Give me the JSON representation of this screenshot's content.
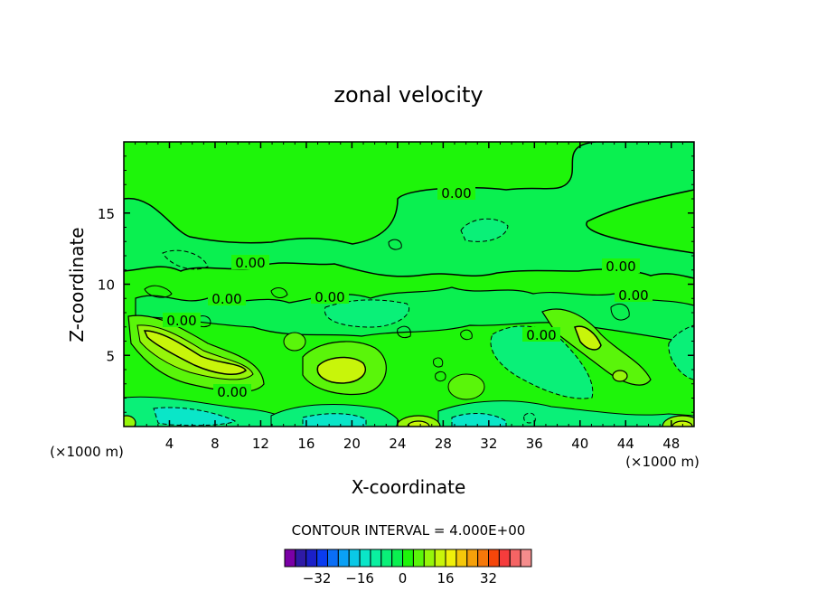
{
  "chart_data": {
    "type": "heatmap",
    "title": "zonal velocity",
    "xlabel": "X-coordinate",
    "ylabel": "Z-coordinate",
    "x_unit": "(×1000 m)",
    "z_unit": "(×1000 m)",
    "xlim": [
      0,
      50
    ],
    "ylim": [
      0,
      20
    ],
    "x_ticks": [
      4,
      8,
      12,
      16,
      20,
      24,
      28,
      32,
      36,
      40,
      44,
      48
    ],
    "y_ticks": [
      5,
      10,
      15
    ],
    "x_tick_labels": [
      "4",
      "8",
      "12",
      "16",
      "20",
      "24",
      "28",
      "32",
      "36",
      "40",
      "44",
      "48"
    ],
    "y_tick_labels": [
      "5",
      "10",
      "15"
    ],
    "contour_interval_text": "CONTOUR INTERVAL = 4.000E+00",
    "contour_label": "0.00",
    "colorbar": {
      "colors": [
        "#7a00a6",
        "#2f1aa6",
        "#1b20c8",
        "#0a3cf0",
        "#0a6ef5",
        "#0aa0f5",
        "#0ac8e6",
        "#0ae6c8",
        "#0af0a0",
        "#0af078",
        "#0af050",
        "#1ef50a",
        "#5af50a",
        "#96f50a",
        "#c8f50a",
        "#f0f00a",
        "#f5c80a",
        "#f5a00a",
        "#f5780a",
        "#f5460a",
        "#f53c3c",
        "#f56464",
        "#f58c8c"
      ],
      "tick_values": [
        -32,
        -16,
        0,
        16,
        32
      ],
      "tick_labels": [
        "−32",
        "−16",
        "0",
        "16",
        "32"
      ],
      "range": [
        -44,
        48
      ]
    },
    "grid": false,
    "field_features": [
      {
        "kind": "positive_jet",
        "x": 6.5,
        "z": 5.5,
        "value": 10
      },
      {
        "kind": "positive_jet",
        "x": 19.5,
        "z": 4.0,
        "value": 9
      },
      {
        "kind": "positive_jet",
        "x": 41.0,
        "z": 6.5,
        "value": 8
      },
      {
        "kind": "positive_cell",
        "x": 26.0,
        "z": 0.4,
        "value": 8
      },
      {
        "kind": "positive_cell",
        "x": 49.0,
        "z": 0.4,
        "value": 8
      },
      {
        "kind": "negative_region",
        "x": 33.0,
        "z": 1.5,
        "value": -6
      },
      {
        "kind": "negative_region",
        "x": 38.0,
        "z": 5.0,
        "value": -6
      },
      {
        "kind": "negative_region",
        "x": 23.0,
        "z": 9.0,
        "value": -4
      },
      {
        "kind": "negative_region",
        "x": 31.0,
        "z": 14.5,
        "value": -3
      }
    ]
  }
}
